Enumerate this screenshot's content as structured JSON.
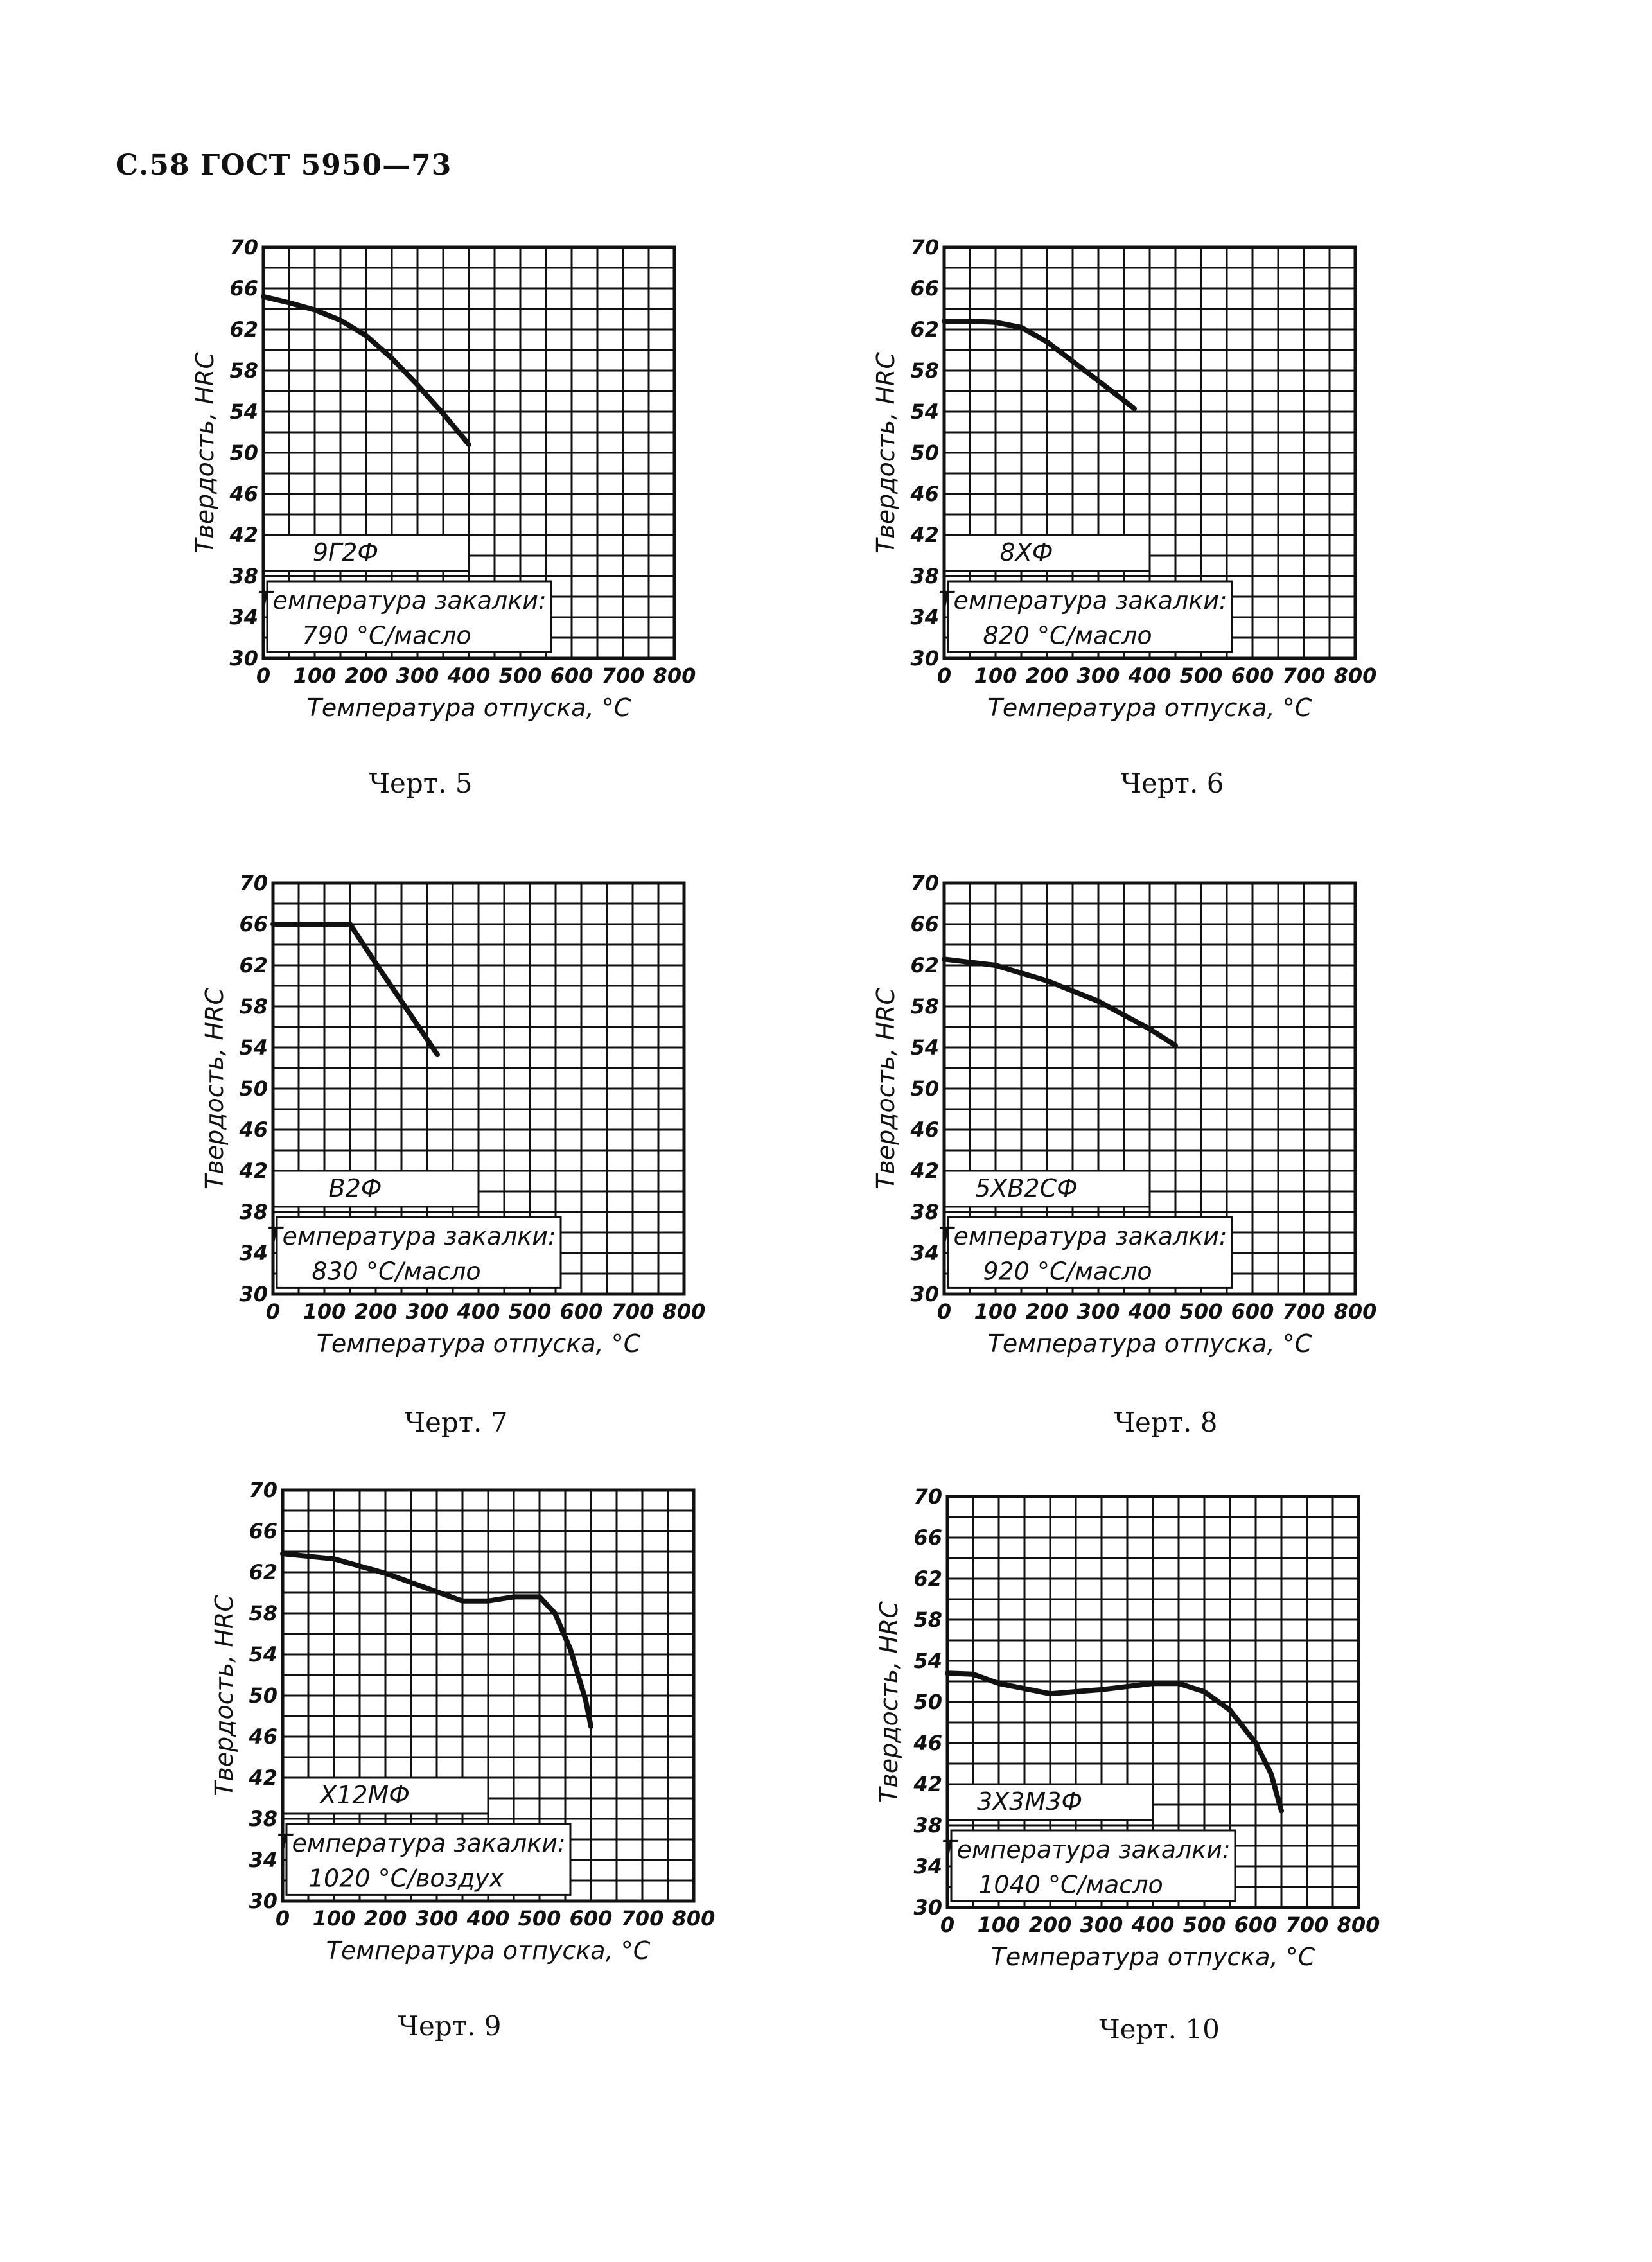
{
  "page": {
    "header": "С.58 ГОСТ 5950—73"
  },
  "chart_data": [
    {
      "type": "line",
      "caption": "Черт. 5",
      "grade": "9Г2Ф",
      "quench_line1": "Температура закалки:",
      "quench_line2": "790 °С/масло",
      "xlabel": "Температура отпуска, °С",
      "ylabel": "Твердость, HRC",
      "xlim": [
        0,
        800
      ],
      "ylim": [
        30,
        70
      ],
      "xticks": [
        0,
        100,
        200,
        300,
        400,
        500,
        600,
        700,
        800
      ],
      "yticks": [
        30,
        34,
        38,
        42,
        46,
        50,
        54,
        58,
        62,
        66,
        70
      ],
      "grid": true,
      "series": [
        {
          "x": [
            0,
            50,
            100,
            150,
            200,
            250,
            300,
            350,
            400
          ],
          "y": [
            65.2,
            64.6,
            63.9,
            62.9,
            61.4,
            59.2,
            56.6,
            53.8,
            50.8
          ]
        }
      ]
    },
    {
      "type": "line",
      "caption": "Черт. 6",
      "grade": "8ХФ",
      "quench_line1": "Температура закалки:",
      "quench_line2": "820 °С/масло",
      "xlabel": "Температура отпуска, °С",
      "ylabel": "Твердость, HRC",
      "xlim": [
        0,
        800
      ],
      "ylim": [
        30,
        70
      ],
      "xticks": [
        0,
        100,
        200,
        300,
        400,
        500,
        600,
        700,
        800
      ],
      "yticks": [
        30,
        34,
        38,
        42,
        46,
        50,
        54,
        58,
        62,
        66,
        70
      ],
      "grid": true,
      "series": [
        {
          "x": [
            0,
            50,
            100,
            150,
            200,
            250,
            300,
            370
          ],
          "y": [
            62.8,
            62.8,
            62.7,
            62.2,
            60.8,
            58.9,
            57.0,
            54.3
          ]
        }
      ]
    },
    {
      "type": "line",
      "caption": "Черт. 7",
      "grade": "В2Ф",
      "quench_line1": "Температура закалки:",
      "quench_line2": "830 °С/масло",
      "xlabel": "Температура отпуска, °С",
      "ylabel": "Твердость, HRC",
      "xlim": [
        0,
        800
      ],
      "ylim": [
        30,
        70
      ],
      "xticks": [
        0,
        100,
        200,
        300,
        400,
        500,
        600,
        700,
        800
      ],
      "yticks": [
        30,
        34,
        38,
        42,
        46,
        50,
        54,
        58,
        62,
        66,
        70
      ],
      "grid": true,
      "series": [
        {
          "x": [
            0,
            50,
            100,
            150,
            200,
            250,
            300,
            320
          ],
          "y": [
            66,
            66,
            66,
            66,
            62.2,
            58.5,
            54.8,
            53.3
          ]
        }
      ]
    },
    {
      "type": "line",
      "caption": "Черт. 8",
      "grade": "5ХВ2СФ",
      "quench_line1": "Температура закалки:",
      "quench_line2": "920 °С/масло",
      "xlabel": "Температура отпуска, °С",
      "ylabel": "Твердость, HRC",
      "xlim": [
        0,
        800
      ],
      "ylim": [
        30,
        70
      ],
      "xticks": [
        0,
        100,
        200,
        300,
        400,
        500,
        600,
        700,
        800
      ],
      "yticks": [
        30,
        34,
        38,
        42,
        46,
        50,
        54,
        58,
        62,
        66,
        70
      ],
      "grid": true,
      "series": [
        {
          "x": [
            0,
            100,
            200,
            300,
            400,
            450
          ],
          "y": [
            62.6,
            62.0,
            60.5,
            58.5,
            55.8,
            54.2
          ]
        }
      ]
    },
    {
      "type": "line",
      "caption": "Черт. 9",
      "grade": "Х12МФ",
      "quench_line1": "Температура закалки:",
      "quench_line2": "1020 °С/воздух",
      "xlabel": "Температура отпуска, °С",
      "ylabel": "Твердость, HRC",
      "xlim": [
        0,
        800
      ],
      "ylim": [
        30,
        70
      ],
      "xticks": [
        0,
        100,
        200,
        300,
        400,
        500,
        600,
        700,
        800
      ],
      "yticks": [
        30,
        34,
        38,
        42,
        46,
        50,
        54,
        58,
        62,
        66,
        70
      ],
      "grid": true,
      "series": [
        {
          "x": [
            0,
            100,
            200,
            300,
            350,
            400,
            450,
            500,
            530,
            560,
            590,
            600
          ],
          "y": [
            63.8,
            63.3,
            61.9,
            60.1,
            59.2,
            59.2,
            59.6,
            59.6,
            58.0,
            54.5,
            49.5,
            47.0
          ]
        }
      ]
    },
    {
      "type": "line",
      "caption": "Черт. 10",
      "grade": "3Х3М3Ф",
      "quench_line1": "Температура закалки:",
      "quench_line2": "1040 °С/масло",
      "xlabel": "Температура отпуска, °С",
      "ylabel": "Твердость, HRC",
      "xlim": [
        0,
        800
      ],
      "ylim": [
        30,
        70
      ],
      "xticks": [
        0,
        100,
        200,
        300,
        400,
        500,
        600,
        700,
        800
      ],
      "yticks": [
        30,
        34,
        38,
        42,
        46,
        50,
        54,
        58,
        62,
        66,
        70
      ],
      "grid": true,
      "series": [
        {
          "x": [
            0,
            50,
            100,
            200,
            300,
            400,
            450,
            500,
            550,
            600,
            630,
            650
          ],
          "y": [
            52.8,
            52.7,
            51.8,
            50.8,
            51.2,
            51.8,
            51.8,
            51.0,
            49.2,
            46.0,
            43.0,
            39.4
          ]
        }
      ]
    }
  ]
}
